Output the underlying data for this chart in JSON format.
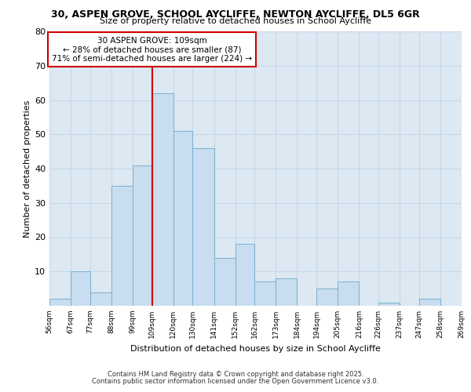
{
  "title": "30, ASPEN GROVE, SCHOOL AYCLIFFE, NEWTON AYCLIFFE, DL5 6GR",
  "subtitle": "Size of property relative to detached houses in School Aycliffe",
  "xlabel": "Distribution of detached houses by size in School Aycliffe",
  "ylabel": "Number of detached properties",
  "bins": [
    56,
    67,
    77,
    88,
    99,
    109,
    120,
    130,
    141,
    152,
    162,
    173,
    184,
    194,
    205,
    216,
    226,
    237,
    247,
    258,
    269
  ],
  "counts": [
    2,
    10,
    4,
    35,
    41,
    62,
    51,
    46,
    14,
    18,
    7,
    8,
    0,
    5,
    7,
    0,
    1,
    0,
    2,
    0
  ],
  "bar_color": "#c8ddef",
  "bar_edge_color": "#7ab0d0",
  "vline_x": 109,
  "vline_color": "#cc0000",
  "annotation_text": "30 ASPEN GROVE: 109sqm\n← 28% of detached houses are smaller (87)\n71% of semi-detached houses are larger (224) →",
  "annotation_box_color": "white",
  "annotation_box_edge_color": "#cc0000",
  "ylim": [
    0,
    80
  ],
  "yticks": [
    0,
    10,
    20,
    30,
    40,
    50,
    60,
    70,
    80
  ],
  "xtick_labels": [
    "56sqm",
    "67sqm",
    "77sqm",
    "88sqm",
    "99sqm",
    "109sqm",
    "120sqm",
    "130sqm",
    "141sqm",
    "152sqm",
    "162sqm",
    "173sqm",
    "184sqm",
    "194sqm",
    "205sqm",
    "216sqm",
    "226sqm",
    "237sqm",
    "247sqm",
    "258sqm",
    "269sqm"
  ],
  "grid_color": "#c8d8e8",
  "bg_color": "#dce8f2",
  "footer_line1": "Contains HM Land Registry data © Crown copyright and database right 2025.",
  "footer_line2": "Contains public sector information licensed under the Open Government Licence v3.0."
}
